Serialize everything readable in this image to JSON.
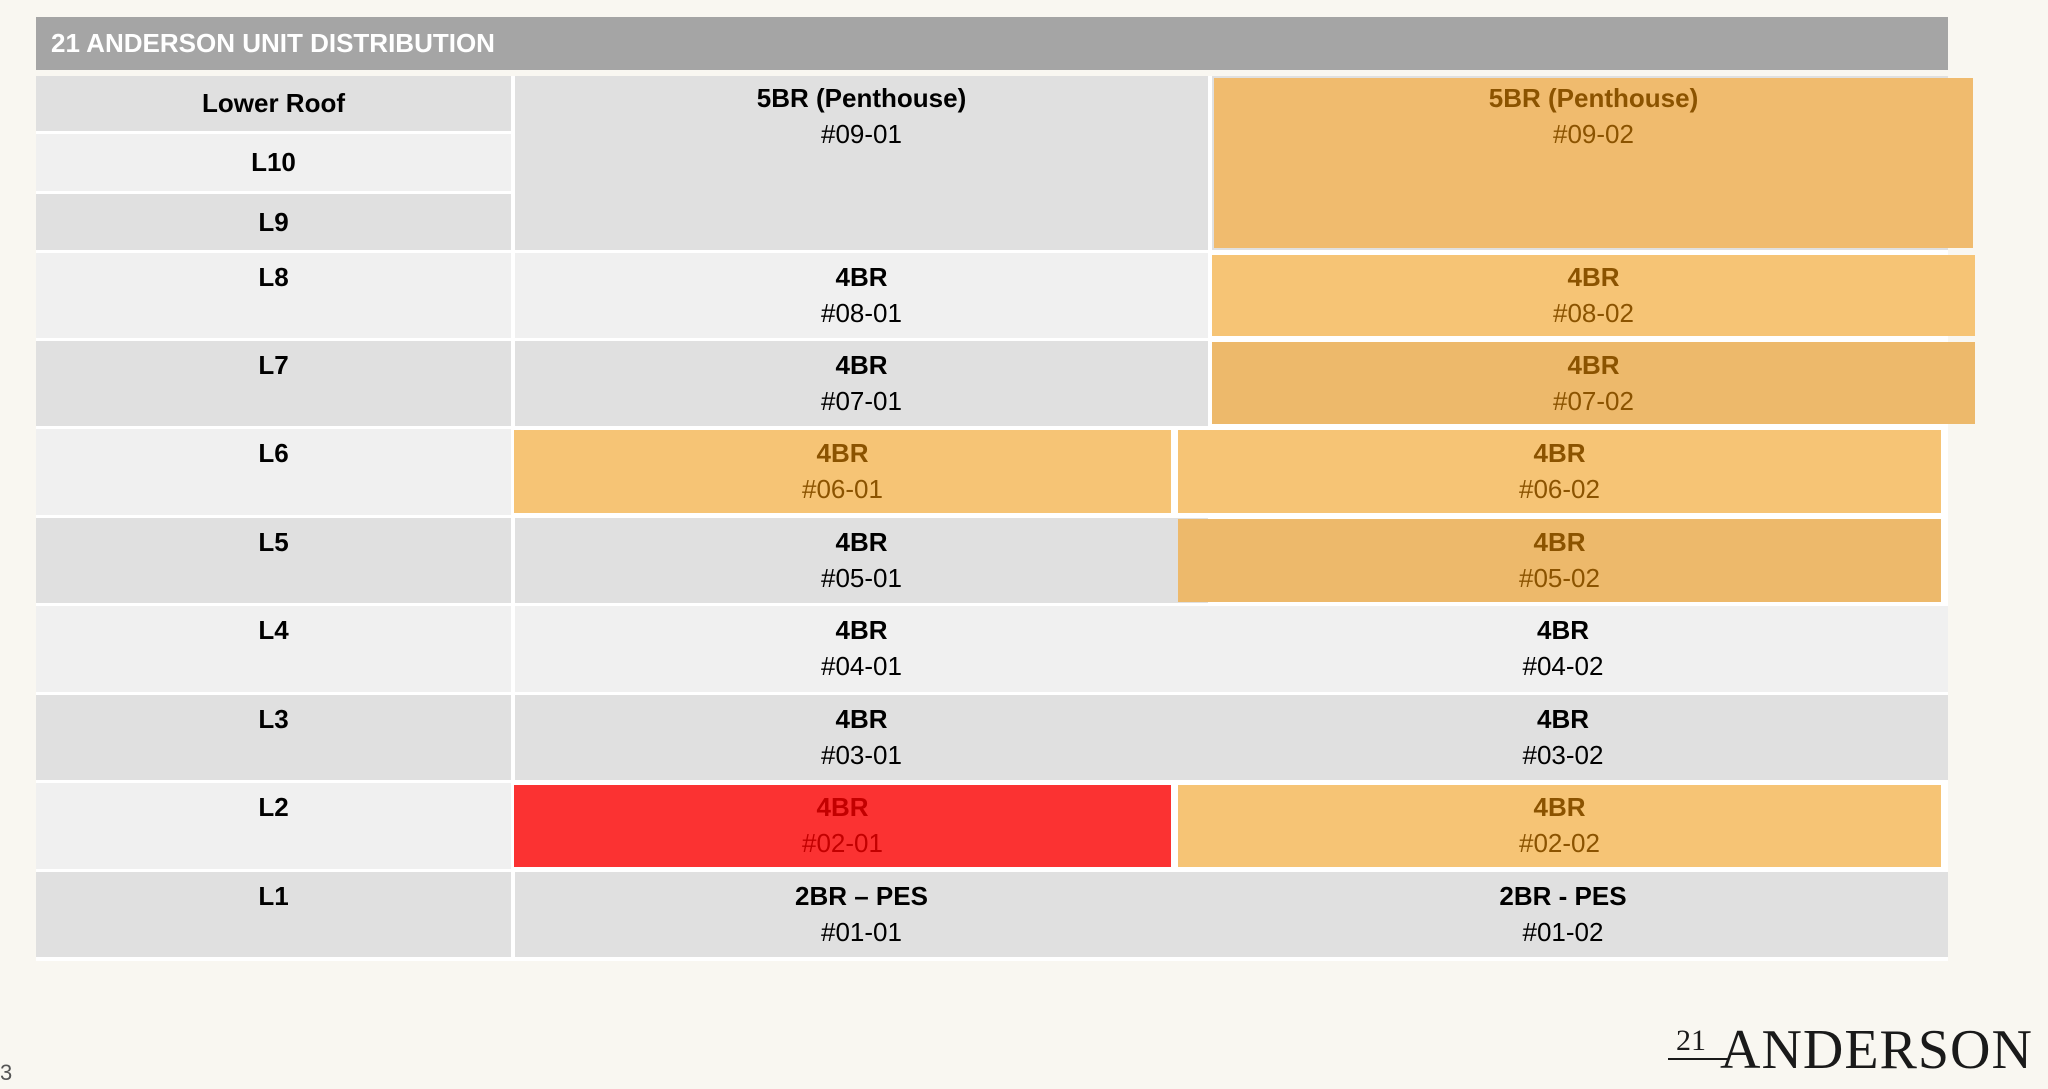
{
  "title": "21 ANDERSON UNIT DISTRIBUTION",
  "floors": [
    "Lower Roof",
    "L10",
    "L9",
    "L8",
    "L7",
    "L6",
    "L5",
    "L4",
    "L3",
    "L2",
    "L1"
  ],
  "penthouse": {
    "col1": {
      "type": "5BR (Penthouse)",
      "unit": "#09-01"
    },
    "col2": {
      "type": "5BR (Penthouse)",
      "unit": "#09-02"
    }
  },
  "units": {
    "l8": {
      "col1": {
        "type": "4BR",
        "unit": "#08-01"
      },
      "col2": {
        "type": "4BR",
        "unit": "#08-02"
      }
    },
    "l7": {
      "col1": {
        "type": "4BR",
        "unit": "#07-01"
      },
      "col2": {
        "type": "4BR",
        "unit": "#07-02"
      }
    },
    "l6": {
      "col1": {
        "type": "4BR",
        "unit": "#06-01"
      },
      "col2": {
        "type": "4BR",
        "unit": "#06-02"
      }
    },
    "l5": {
      "col1": {
        "type": "4BR",
        "unit": "#05-01"
      },
      "col2": {
        "type": "4BR",
        "unit": "#05-02"
      }
    },
    "l4": {
      "col1": {
        "type": "4BR",
        "unit": "#04-01"
      },
      "col2": {
        "type": "4BR",
        "unit": "#04-02"
      }
    },
    "l3": {
      "col1": {
        "type": "4BR",
        "unit": "#03-01"
      },
      "col2": {
        "type": "4BR",
        "unit": "#03-02"
      }
    },
    "l2": {
      "col1": {
        "type": "4BR",
        "unit": "#02-01"
      },
      "col2": {
        "type": "4BR",
        "unit": "#02-02"
      }
    },
    "l1": {
      "col1": {
        "type": "2BR – PES",
        "unit": "#01-01"
      },
      "col2": {
        "type": "2BR - PES",
        "unit": "#01-02"
      }
    }
  },
  "colors": {
    "header_bar": "#a5a5a5",
    "highlight_amber": "#f6c475",
    "highlight_red": "#fb3232",
    "row_light": "#f0f0f0",
    "row_dark": "#e0e0e0"
  },
  "page_number": "3",
  "logo": {
    "number": "21",
    "word": "ANDERSON"
  }
}
